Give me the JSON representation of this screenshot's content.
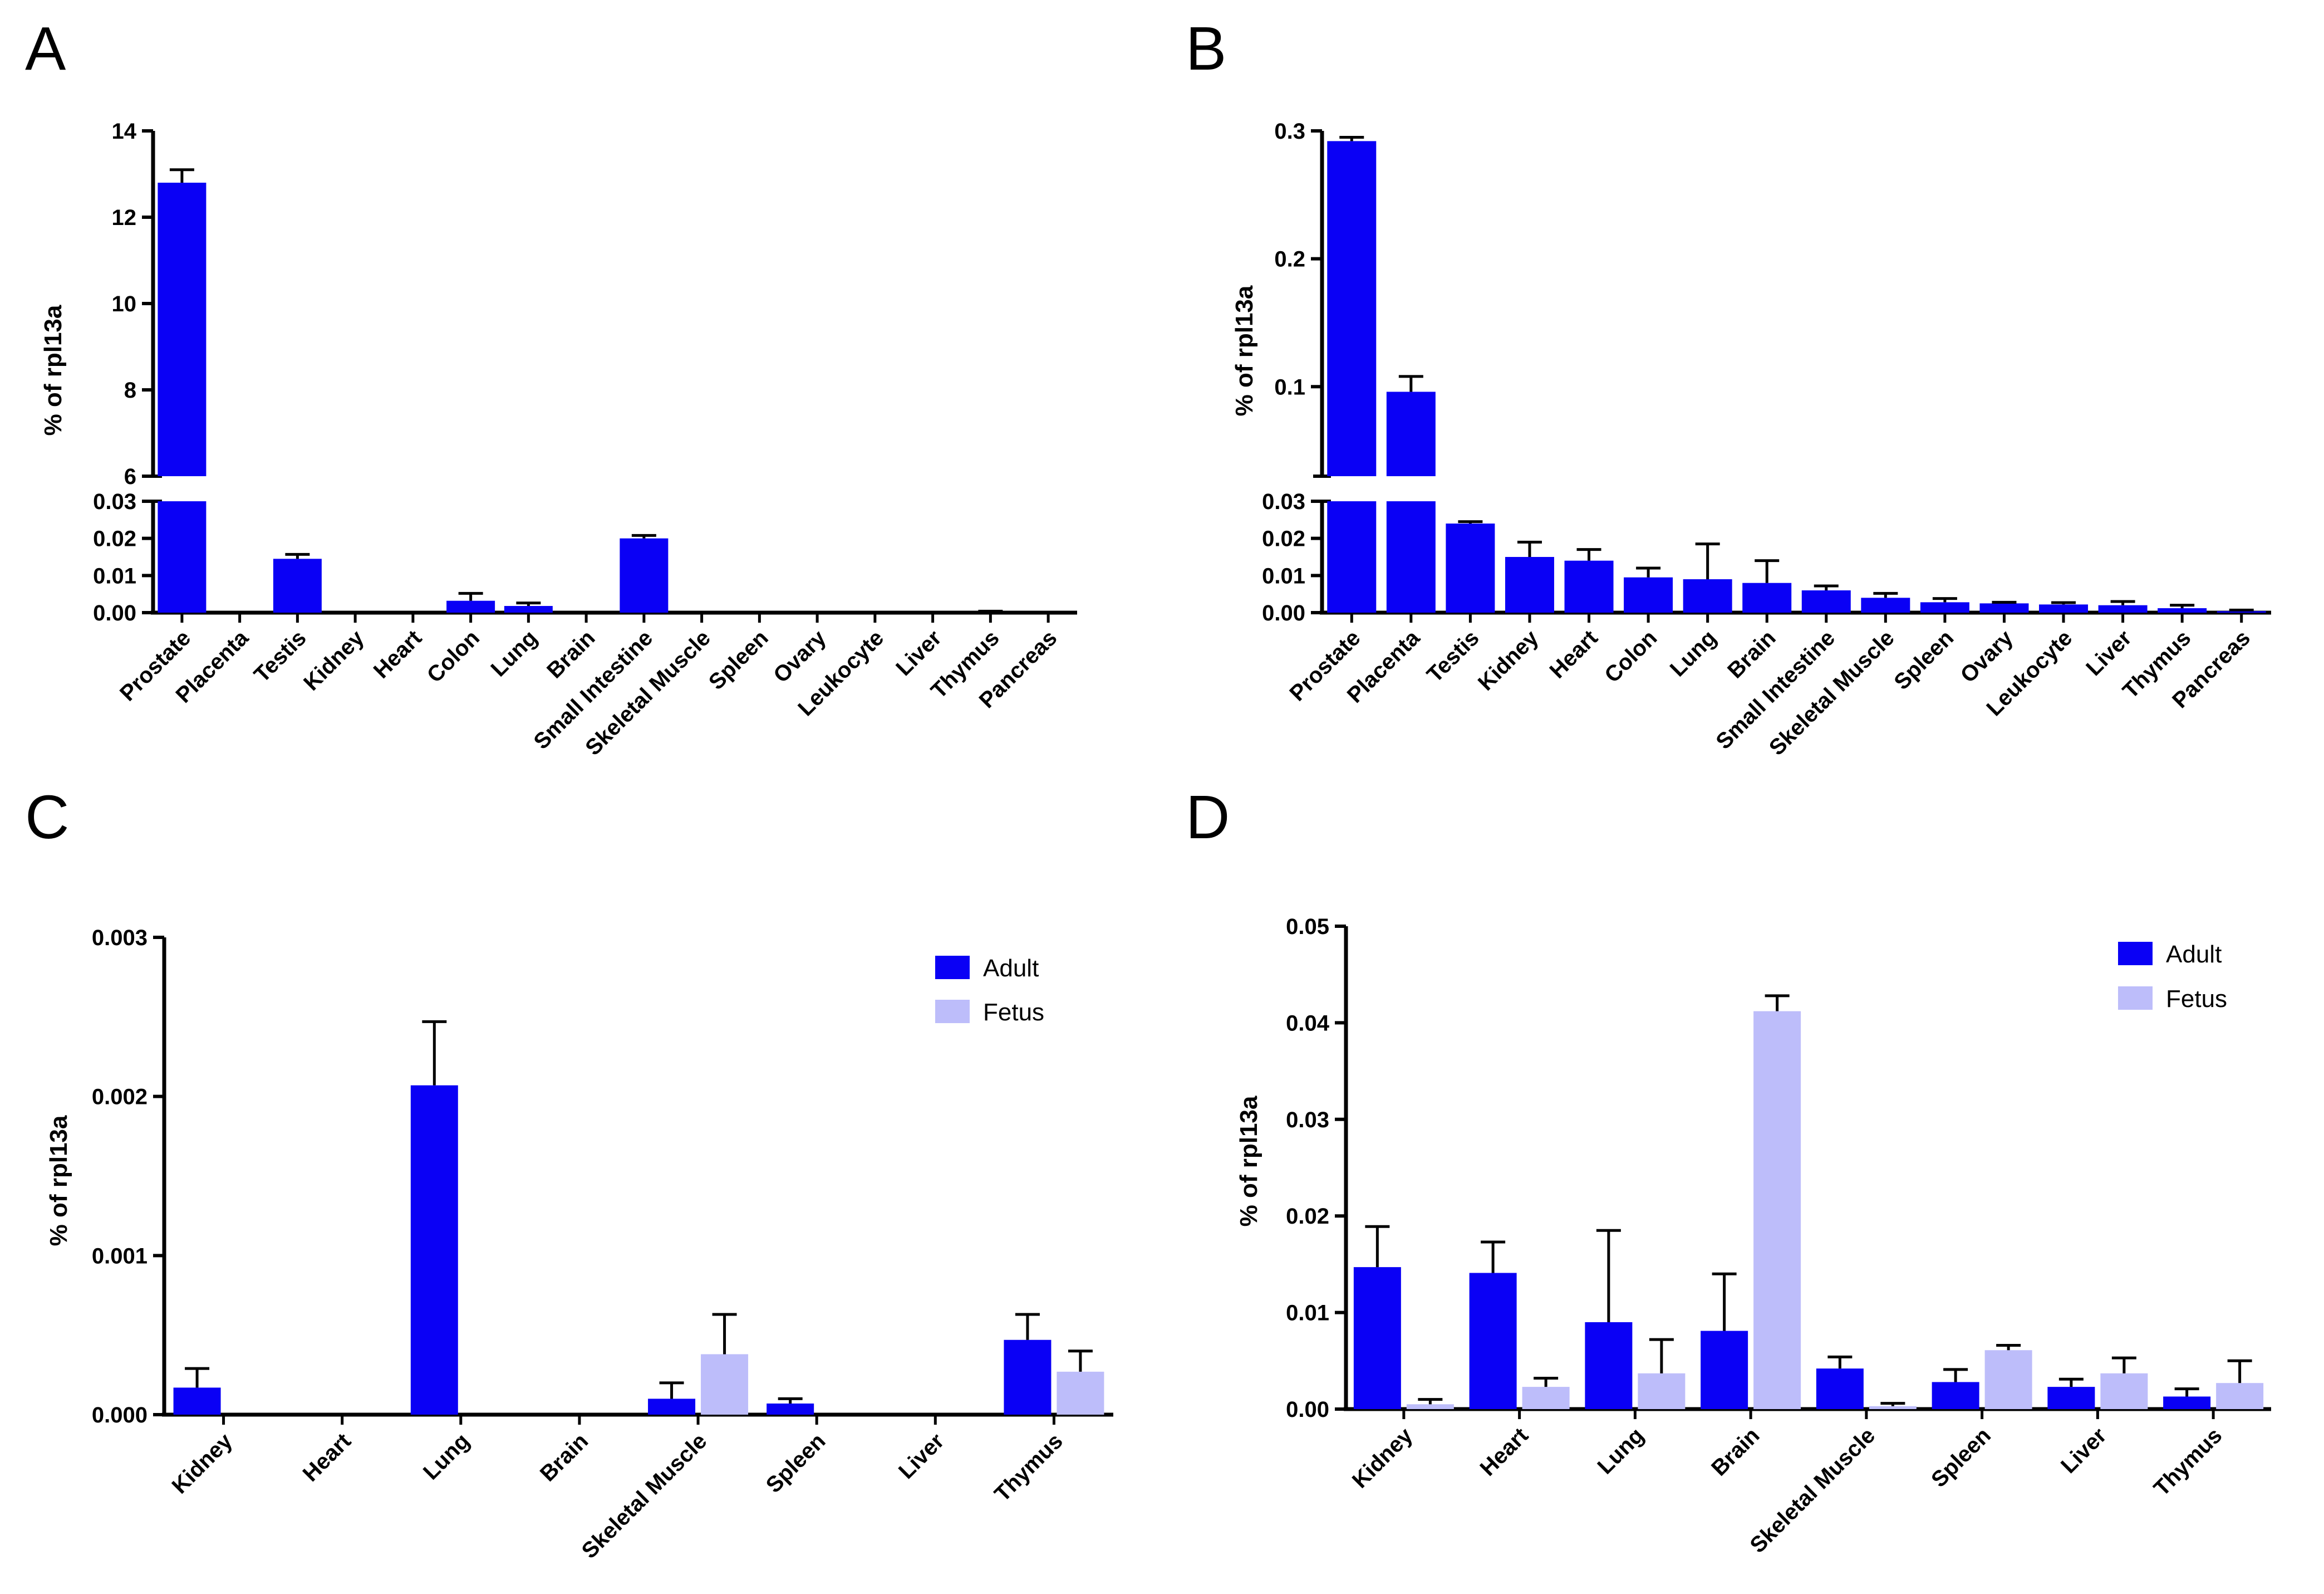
{
  "colors": {
    "adult": "#0a00f5",
    "fetus": "#bdbdfa",
    "axis": "#000000"
  },
  "chart_data": [
    {
      "panel": "A",
      "type": "bar",
      "ylabel": "% of rpl13a",
      "categories": [
        "Prostate",
        "Placenta",
        "Testis",
        "Kidney",
        "Heart",
        "Colon",
        "Lung",
        "Brain",
        "Small Intestine",
        "Skeletal Muscle",
        "Spleen",
        "Ovary",
        "Leukocyte",
        "Liver",
        "Thymus",
        "Pancreas"
      ],
      "series": [
        {
          "values": [
            12.8,
            0,
            0.0145,
            0,
            0,
            0.0032,
            0.0018,
            0,
            0.02,
            0,
            0,
            0,
            0,
            0,
            0,
            0
          ],
          "errors": [
            0.3,
            0,
            0.0012,
            0,
            0,
            0.002,
            0.0008,
            0,
            0.0008,
            0,
            0,
            0,
            0,
            0,
            0.0004,
            0
          ]
        }
      ],
      "axis_break": true,
      "lower_range": [
        0,
        0.03
      ],
      "lower_ticks": [
        "0.00",
        "0.01",
        "0.02",
        "0.03"
      ],
      "upper_range": [
        6,
        14
      ],
      "upper_ticks": [
        "6",
        "8",
        "10",
        "12",
        "14"
      ]
    },
    {
      "panel": "B",
      "type": "bar",
      "ylabel": "% of rpl13a",
      "categories": [
        "Prostate",
        "Placenta",
        "Testis",
        "Kidney",
        "Heart",
        "Colon",
        "Lung",
        "Brain",
        "Small Intestine",
        "Skeletal Muscle",
        "Spleen",
        "Ovary",
        "Leukocyte",
        "Liver",
        "Thymus",
        "Pancreas"
      ],
      "series": [
        {
          "values": [
            0.292,
            0.096,
            0.024,
            0.015,
            0.014,
            0.0095,
            0.009,
            0.008,
            0.006,
            0.004,
            0.0028,
            0.0025,
            0.0022,
            0.002,
            0.0012,
            0.0004
          ],
          "errors": [
            0.003,
            0.012,
            0.0005,
            0.004,
            0.003,
            0.0025,
            0.0095,
            0.006,
            0.0012,
            0.0012,
            0.001,
            0.0003,
            0.0005,
            0.001,
            0.0008,
            0.0003
          ]
        }
      ],
      "axis_break": true,
      "lower_range": [
        0,
        0.03
      ],
      "lower_ticks": [
        "0.00",
        "0.01",
        "0.02",
        "0.03"
      ],
      "upper_range": [
        0.03,
        0.3
      ],
      "upper_ticks": [
        "0.1",
        "0.2",
        "0.3"
      ],
      "upper_tick_values": [
        0.1,
        0.2,
        0.3
      ]
    },
    {
      "panel": "C",
      "type": "bar",
      "ylabel": "% of rpl13a",
      "categories": [
        "Kidney",
        "Heart",
        "Lung",
        "Brain",
        "Skeletal Muscle",
        "Spleen",
        "Liver",
        "Thymus"
      ],
      "ylim": [
        0,
        0.003
      ],
      "yticks": [
        "0.000",
        "0.001",
        "0.002",
        "0.003"
      ],
      "series": [
        {
          "name": "Adult",
          "values": [
            0.00017,
            0,
            0.00207,
            0,
            0.0001,
            7e-05,
            0,
            0.00047
          ],
          "errors": [
            0.00012,
            0,
            0.0004,
            0,
            0.0001,
            3e-05,
            0,
            0.00016
          ]
        },
        {
          "name": "Fetus",
          "values": [
            0,
            0,
            0,
            0,
            0.00038,
            0,
            0,
            0.00027
          ],
          "errors": [
            0,
            0,
            0,
            0,
            0.00025,
            0,
            0,
            0.00013
          ]
        }
      ],
      "legend": "top-right"
    },
    {
      "panel": "D",
      "type": "bar",
      "ylabel": "% of rpl13a",
      "categories": [
        "Kidney",
        "Heart",
        "Lung",
        "Brain",
        "Skeletal Muscle",
        "Spleen",
        "Liver",
        "Thymus"
      ],
      "ylim": [
        0,
        0.05
      ],
      "yticks": [
        "0.00",
        "0.01",
        "0.02",
        "0.03",
        "0.04",
        "0.05"
      ],
      "series": [
        {
          "name": "Adult",
          "values": [
            0.0147,
            0.0141,
            0.009,
            0.0081,
            0.0042,
            0.0028,
            0.0023,
            0.0013
          ],
          "errors": [
            0.0042,
            0.0032,
            0.0095,
            0.0059,
            0.0012,
            0.0013,
            0.0008,
            0.0008
          ]
        },
        {
          "name": "Fetus",
          "values": [
            0.0005,
            0.0023,
            0.0037,
            0.0412,
            0.0003,
            0.0061,
            0.0037,
            0.0027
          ],
          "errors": [
            0.0005,
            0.0009,
            0.0035,
            0.0016,
            0.0003,
            0.0005,
            0.0016,
            0.0023
          ]
        }
      ],
      "legend": "top-right"
    }
  ]
}
